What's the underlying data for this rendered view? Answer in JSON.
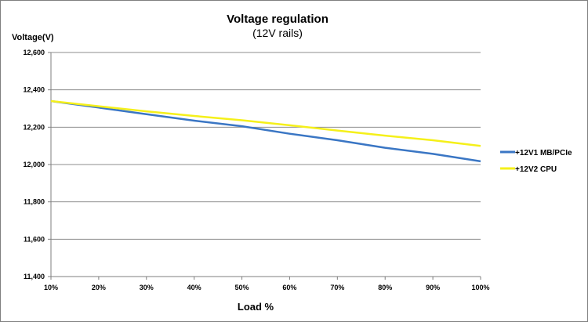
{
  "chart_data": {
    "type": "line",
    "title": "Voltage regulation",
    "subtitle": "(12V rails)",
    "ylabel": "Voltage(V)",
    "xlabel": "Load %",
    "categories": [
      "10%",
      "20%",
      "30%",
      "40%",
      "50%",
      "60%",
      "70%",
      "80%",
      "90%",
      "100%"
    ],
    "ylim": [
      11400,
      12600
    ],
    "yticks": [
      11400,
      11600,
      11800,
      12000,
      12200,
      12400,
      12600
    ],
    "ytick_labels": [
      "11,400",
      "11,600",
      "11,800",
      "12,000",
      "12,200",
      "12,400",
      "12,600"
    ],
    "grid": true,
    "legend_position": "right",
    "series": [
      {
        "name": "+12V1 MB/PCIe",
        "color": "#3a76c4",
        "values": [
          12340,
          12305,
          12270,
          12235,
          12205,
          12165,
          12130,
          12090,
          12057,
          12017
        ]
      },
      {
        "name": "+12V2 CPU",
        "color": "#f5f01a",
        "values": [
          12340,
          12312,
          12285,
          12260,
          12237,
          12210,
          12182,
          12155,
          12130,
          12100
        ]
      }
    ]
  }
}
